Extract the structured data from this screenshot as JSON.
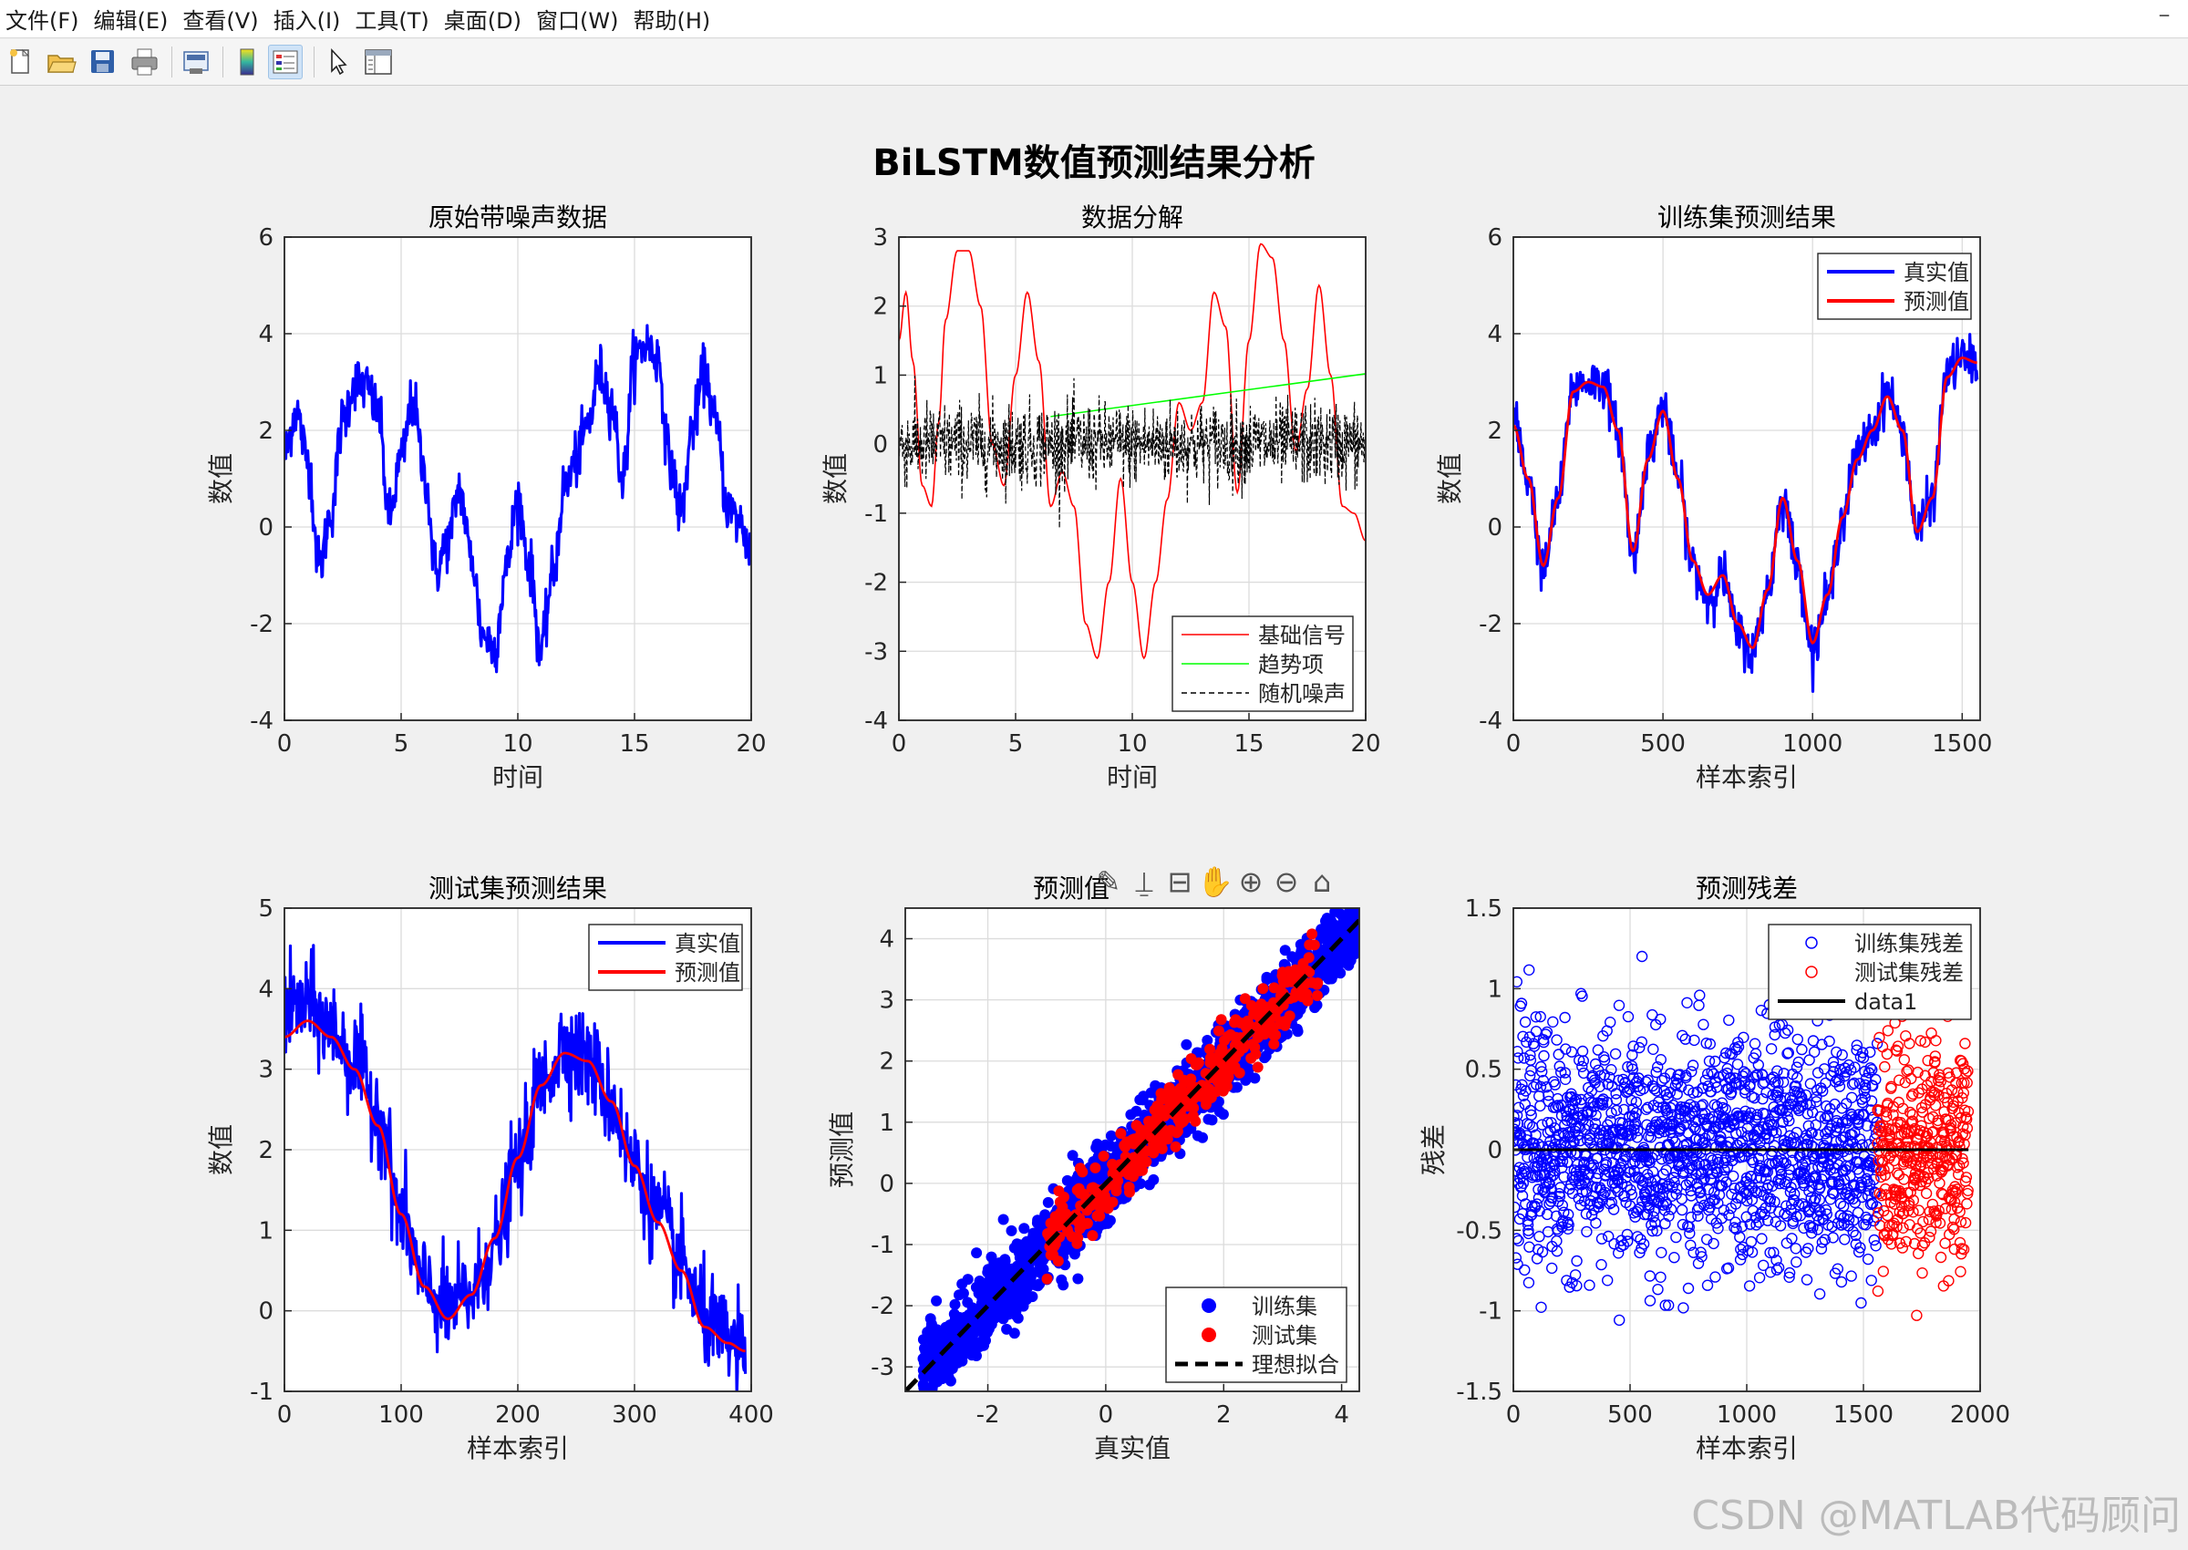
{
  "menu": [
    "文件(F)",
    "编辑(E)",
    "查看(V)",
    "插入(I)",
    "工具(T)",
    "桌面(D)",
    "窗口(W)",
    "帮助(H)"
  ],
  "toolbar": {
    "icons": [
      "new-file-icon",
      "open-folder-icon",
      "save-icon",
      "print-icon",
      "print-preview-icon",
      "colorbar-icon",
      "legend-icon",
      "pointer-icon",
      "property-editor-icon"
    ],
    "active": [
      "legend-icon"
    ]
  },
  "figure": {
    "suptitle": "BiLSTM数值预测结果分析"
  },
  "axes_toolbar": {
    "icons": [
      "brush-icon",
      "data-cursor-icon",
      "restore-icon",
      "pan-icon",
      "zoom-in-icon",
      "zoom-out-icon",
      "home-icon"
    ]
  },
  "watermark": "CSDN @MATLAB代码顾问",
  "colors": {
    "blue": "#0000ff",
    "red": "#ff0000",
    "green": "#00ff00",
    "black": "#000000",
    "grid": "#dcdcdc"
  },
  "chart_data": [
    {
      "type": "line",
      "title": "原始带噪声数据",
      "xlabel": "时间",
      "ylabel": "数值",
      "xlim": [
        0,
        20
      ],
      "ylim": [
        -4,
        6
      ],
      "xticks": [
        0,
        5,
        10,
        15,
        20
      ],
      "yticks": [
        -4,
        -2,
        0,
        2,
        4,
        6
      ],
      "grid": true,
      "series": [
        {
          "color": "#0000ff",
          "style": "noisy",
          "x": [
            0,
            0.5,
            1,
            1.5,
            2,
            2.5,
            3,
            3.5,
            4,
            4.5,
            5,
            5.5,
            6,
            6.5,
            7,
            7.5,
            8,
            8.5,
            9,
            9.5,
            10,
            10.5,
            11,
            11.5,
            12,
            12.5,
            13,
            13.5,
            14,
            14.5,
            15,
            15.5,
            16,
            16.5,
            17,
            17.5,
            18,
            18.5,
            19,
            19.5,
            20
          ],
          "y": [
            1.5,
            2.4,
            1.4,
            -0.8,
            0.3,
            2.2,
            3.0,
            2.9,
            2.4,
            0.2,
            1.4,
            2.6,
            1.1,
            -0.9,
            -0.3,
            0.8,
            -0.6,
            -2.2,
            -2.5,
            -0.9,
            0.6,
            -0.8,
            -2.6,
            -1.0,
            0.8,
            1.4,
            2.1,
            3.2,
            2.6,
            1.0,
            3.5,
            3.8,
            3.5,
            1.4,
            0.3,
            2.1,
            3.2,
            2.1,
            0.4,
            0.1,
            -0.5
          ],
          "noise": 0.28
        }
      ]
    },
    {
      "type": "line",
      "title": "数据分解",
      "xlabel": "时间",
      "ylabel": "数值",
      "xlim": [
        0,
        20
      ],
      "ylim": [
        -4,
        3
      ],
      "xticks": [
        0,
        5,
        10,
        15,
        20
      ],
      "yticks": [
        -4,
        -3,
        -2,
        -1,
        0,
        1,
        2,
        3
      ],
      "grid": true,
      "legend": {
        "location": "bottom-right",
        "entries": [
          "基础信号",
          "趋势项",
          "随机噪声"
        ]
      },
      "series": [
        {
          "name": "基础信号",
          "color": "#ff0000",
          "style": "smooth",
          "x": [
            0,
            0.3,
            0.6,
            1,
            1.4,
            1.7,
            2,
            2.5,
            3,
            3.5,
            4,
            4.5,
            5,
            5.5,
            6,
            6.5,
            7,
            7.5,
            8,
            8.5,
            9,
            9.5,
            10,
            10.5,
            11,
            11.5,
            12,
            12.5,
            13,
            13.5,
            14,
            14.5,
            15,
            15.5,
            16,
            16.5,
            17,
            17.5,
            18,
            18.5,
            19,
            19.5,
            20
          ],
          "y": [
            1.5,
            2.2,
            1.2,
            -0.6,
            -0.9,
            0.3,
            1.8,
            2.8,
            2.8,
            2.0,
            0.0,
            -0.6,
            1.0,
            2.2,
            1.2,
            -0.9,
            -0.4,
            -0.9,
            -2.6,
            -3.1,
            -2.0,
            -0.5,
            -2.0,
            -3.1,
            -2.0,
            -0.8,
            0.6,
            0.2,
            0.6,
            2.2,
            1.7,
            -0.7,
            1.5,
            2.9,
            2.7,
            1.5,
            -0.1,
            0.8,
            2.3,
            1.0,
            -0.9,
            -1.0,
            -1.4
          ]
        },
        {
          "name": "趋势项",
          "color": "#00ff00",
          "style": "line",
          "x": [
            6.5,
            20
          ],
          "y": [
            0.4,
            1.02
          ]
        },
        {
          "name": "随机噪声",
          "color": "#000000",
          "style": "dashed-noise",
          "x": [
            0,
            20
          ],
          "y": [
            0,
            0
          ],
          "noise": 0.55
        }
      ]
    },
    {
      "type": "line",
      "title": "训练集预测结果",
      "xlabel": "样本索引",
      "ylabel": "数值",
      "xlim": [
        0,
        1560
      ],
      "ylim": [
        -4,
        6
      ],
      "xticks": [
        0,
        500,
        1000,
        1500
      ],
      "yticks": [
        -4,
        -2,
        0,
        2,
        4,
        6
      ],
      "grid": true,
      "legend": {
        "location": "top-right",
        "entries": [
          "真实值",
          "预测值"
        ]
      },
      "series": [
        {
          "name": "真实值",
          "color": "#0000ff",
          "style": "noisy",
          "x": [
            0,
            50,
            100,
            150,
            200,
            250,
            300,
            350,
            400,
            450,
            500,
            550,
            600,
            650,
            700,
            750,
            800,
            850,
            900,
            950,
            1000,
            1050,
            1100,
            1150,
            1200,
            1250,
            1300,
            1350,
            1400,
            1450,
            1500,
            1550
          ],
          "y": [
            2.2,
            1.0,
            -0.9,
            0.6,
            2.9,
            3.0,
            3.0,
            2.0,
            -0.6,
            1.5,
            2.5,
            1.0,
            -0.8,
            -1.5,
            -1.0,
            -2.2,
            -2.6,
            -1.3,
            0.6,
            -0.8,
            -2.5,
            -1.5,
            0.2,
            1.5,
            2.0,
            2.8,
            2.0,
            -0.1,
            0.6,
            3.2,
            3.5,
            3.4
          ],
          "noise": 0.24
        },
        {
          "name": "预测值",
          "color": "#ff0000",
          "style": "smooth",
          "x": [
            0,
            50,
            100,
            150,
            200,
            250,
            300,
            350,
            400,
            450,
            500,
            550,
            600,
            650,
            700,
            750,
            800,
            850,
            900,
            950,
            1000,
            1050,
            1100,
            1150,
            1200,
            1250,
            1300,
            1350,
            1400,
            1450,
            1500,
            1550
          ],
          "y": [
            2.1,
            1.0,
            -0.8,
            0.6,
            2.8,
            3.0,
            2.9,
            2.0,
            -0.5,
            1.4,
            2.4,
            1.0,
            -0.7,
            -1.4,
            -1.0,
            -2.0,
            -2.5,
            -1.3,
            0.6,
            -0.7,
            -2.4,
            -1.4,
            0.2,
            1.4,
            2.0,
            2.7,
            2.0,
            -0.1,
            0.6,
            3.1,
            3.5,
            3.4
          ]
        }
      ]
    },
    {
      "type": "line",
      "title": "测试集预测结果",
      "xlabel": "样本索引",
      "ylabel": "数值",
      "xlim": [
        0,
        400
      ],
      "ylim": [
        -1,
        5
      ],
      "xticks": [
        0,
        100,
        200,
        300,
        400
      ],
      "yticks": [
        -1,
        0,
        1,
        2,
        3,
        4,
        5
      ],
      "grid": true,
      "legend": {
        "location": "top-right",
        "entries": [
          "真实值",
          "预测值"
        ]
      },
      "series": [
        {
          "name": "真实值",
          "color": "#0000ff",
          "style": "noisy",
          "x": [
            0,
            20,
            40,
            60,
            80,
            100,
            120,
            140,
            160,
            180,
            200,
            220,
            240,
            260,
            280,
            300,
            320,
            340,
            360,
            380,
            395
          ],
          "y": [
            3.7,
            3.8,
            3.5,
            3.1,
            2.5,
            1.2,
            0.3,
            0.0,
            0.2,
            0.8,
            1.8,
            2.8,
            3.3,
            3.1,
            2.6,
            1.8,
            1.2,
            0.6,
            -0.1,
            -0.4,
            -0.5
          ],
          "noise": 0.3
        },
        {
          "name": "预测值",
          "color": "#ff0000",
          "style": "smooth",
          "x": [
            0,
            20,
            40,
            60,
            80,
            100,
            120,
            140,
            160,
            180,
            200,
            220,
            240,
            260,
            280,
            300,
            320,
            340,
            360,
            380,
            395
          ],
          "y": [
            3.4,
            3.6,
            3.4,
            3.0,
            2.3,
            1.2,
            0.3,
            -0.1,
            0.2,
            0.9,
            1.9,
            2.8,
            3.2,
            3.1,
            2.6,
            1.8,
            1.1,
            0.5,
            -0.2,
            -0.4,
            -0.5
          ]
        }
      ]
    },
    {
      "type": "scatter",
      "title": "预测值",
      "xlabel": "真实值",
      "ylabel": "预测值",
      "xlim": [
        -3.4,
        4.3
      ],
      "ylim": [
        -3.4,
        4.5
      ],
      "xticks": [
        -2,
        0,
        2,
        4
      ],
      "yticks": [
        -3,
        -2,
        -1,
        0,
        1,
        2,
        3,
        4
      ],
      "grid": true,
      "legend": {
        "location": "bottom-right",
        "entries": [
          "训练集",
          "测试集",
          "理想拟合"
        ]
      },
      "series": [
        {
          "name": "训练集",
          "color": "#0000ff",
          "marker": "filled",
          "count": 1560,
          "range": [
            -3.1,
            4.3
          ],
          "spread": 0.32
        },
        {
          "name": "测试集",
          "color": "#ff0000",
          "marker": "filled",
          "count": 390,
          "range": [
            -1.0,
            3.6
          ],
          "spread": 0.25
        },
        {
          "name": "理想拟合",
          "color": "#000000",
          "style": "dashed",
          "x": [
            -3.4,
            4.3
          ],
          "y": [
            -3.4,
            4.3
          ]
        }
      ]
    },
    {
      "type": "scatter",
      "title": "预测残差",
      "xlabel": "样本索引",
      "ylabel": "残差",
      "xlim": [
        0,
        2000
      ],
      "ylim": [
        -1.5,
        1.5
      ],
      "xticks": [
        0,
        500,
        1000,
        1500,
        2000
      ],
      "yticks": [
        -1.5,
        -1,
        -0.5,
        0,
        0.5,
        1,
        1.5
      ],
      "grid": true,
      "legend": {
        "location": "top-right",
        "entries": [
          "训练集残差",
          "测试集残差",
          "data1"
        ]
      },
      "series": [
        {
          "name": "训练集残差",
          "color": "#0000ff",
          "marker": "open",
          "x_range": [
            0,
            1560
          ],
          "count": 1560,
          "sd": 0.35
        },
        {
          "name": "测试集残差",
          "color": "#ff0000",
          "marker": "open",
          "x_range": [
            1560,
            1950
          ],
          "count": 390,
          "sd": 0.35
        },
        {
          "name": "data1",
          "color": "#000000",
          "style": "line",
          "x": [
            0,
            1950
          ],
          "y": [
            0,
            0
          ]
        }
      ]
    }
  ]
}
